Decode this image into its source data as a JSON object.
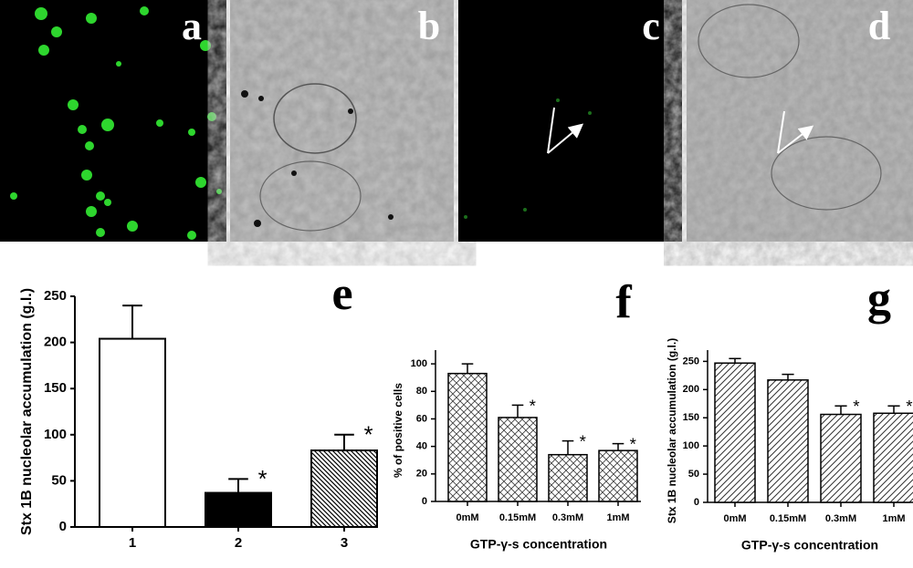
{
  "image_panels": [
    {
      "label": "a"
    },
    {
      "label": "b"
    },
    {
      "label": "c"
    },
    {
      "label": "d"
    }
  ],
  "chart_data": [
    {
      "type": "bar",
      "panel": "e",
      "y_label": "Stx 1B nucleolar accumulation (g.l.)",
      "categories": [
        "1",
        "2",
        "3"
      ],
      "values": [
        204,
        37,
        83
      ],
      "errors": [
        36,
        15,
        17
      ],
      "annotations": [
        null,
        "*",
        "*"
      ],
      "colors": [
        "#ffffff",
        "#000000",
        "#ffffff"
      ],
      "hatch": [
        null,
        null,
        "back-diagonal"
      ],
      "ylim": [
        0,
        250
      ],
      "yticks": [
        0,
        50,
        100,
        150,
        200,
        250
      ]
    },
    {
      "type": "bar",
      "panel": "f",
      "y_label": "% of positive cells",
      "x_label": "GTP-γ-s concentration",
      "categories": [
        "0mM",
        "0.15mM",
        "0.3mM",
        "1mM"
      ],
      "values": [
        93,
        61,
        34,
        37
      ],
      "errors": [
        7,
        9,
        10,
        5
      ],
      "annotations": [
        null,
        "*",
        "*",
        "*"
      ],
      "colors": [
        "#ffffff",
        "#ffffff",
        "#ffffff",
        "#ffffff"
      ],
      "hatch": [
        "crosshatch",
        "crosshatch",
        "crosshatch",
        "crosshatch"
      ],
      "ylim": [
        0,
        110
      ],
      "yticks": [
        0,
        20,
        40,
        60,
        80,
        100
      ]
    },
    {
      "type": "bar",
      "panel": "g",
      "y_label": "Stx 1B nucleolar accumulation (g.l.)",
      "x_label": "GTP-γ-s concentration",
      "categories": [
        "0mM",
        "0.15mM",
        "0.3mM",
        "1mM"
      ],
      "values": [
        247,
        217,
        156,
        158
      ],
      "errors": [
        8,
        10,
        15,
        13
      ],
      "annotations": [
        null,
        null,
        "*",
        "*"
      ],
      "colors": [
        "#ffffff",
        "#ffffff",
        "#ffffff",
        "#ffffff"
      ],
      "hatch": [
        "diagonal",
        "diagonal",
        "diagonal",
        "diagonal"
      ],
      "ylim": [
        0,
        270
      ],
      "yticks": [
        0,
        50,
        100,
        150,
        200,
        250
      ]
    }
  ]
}
